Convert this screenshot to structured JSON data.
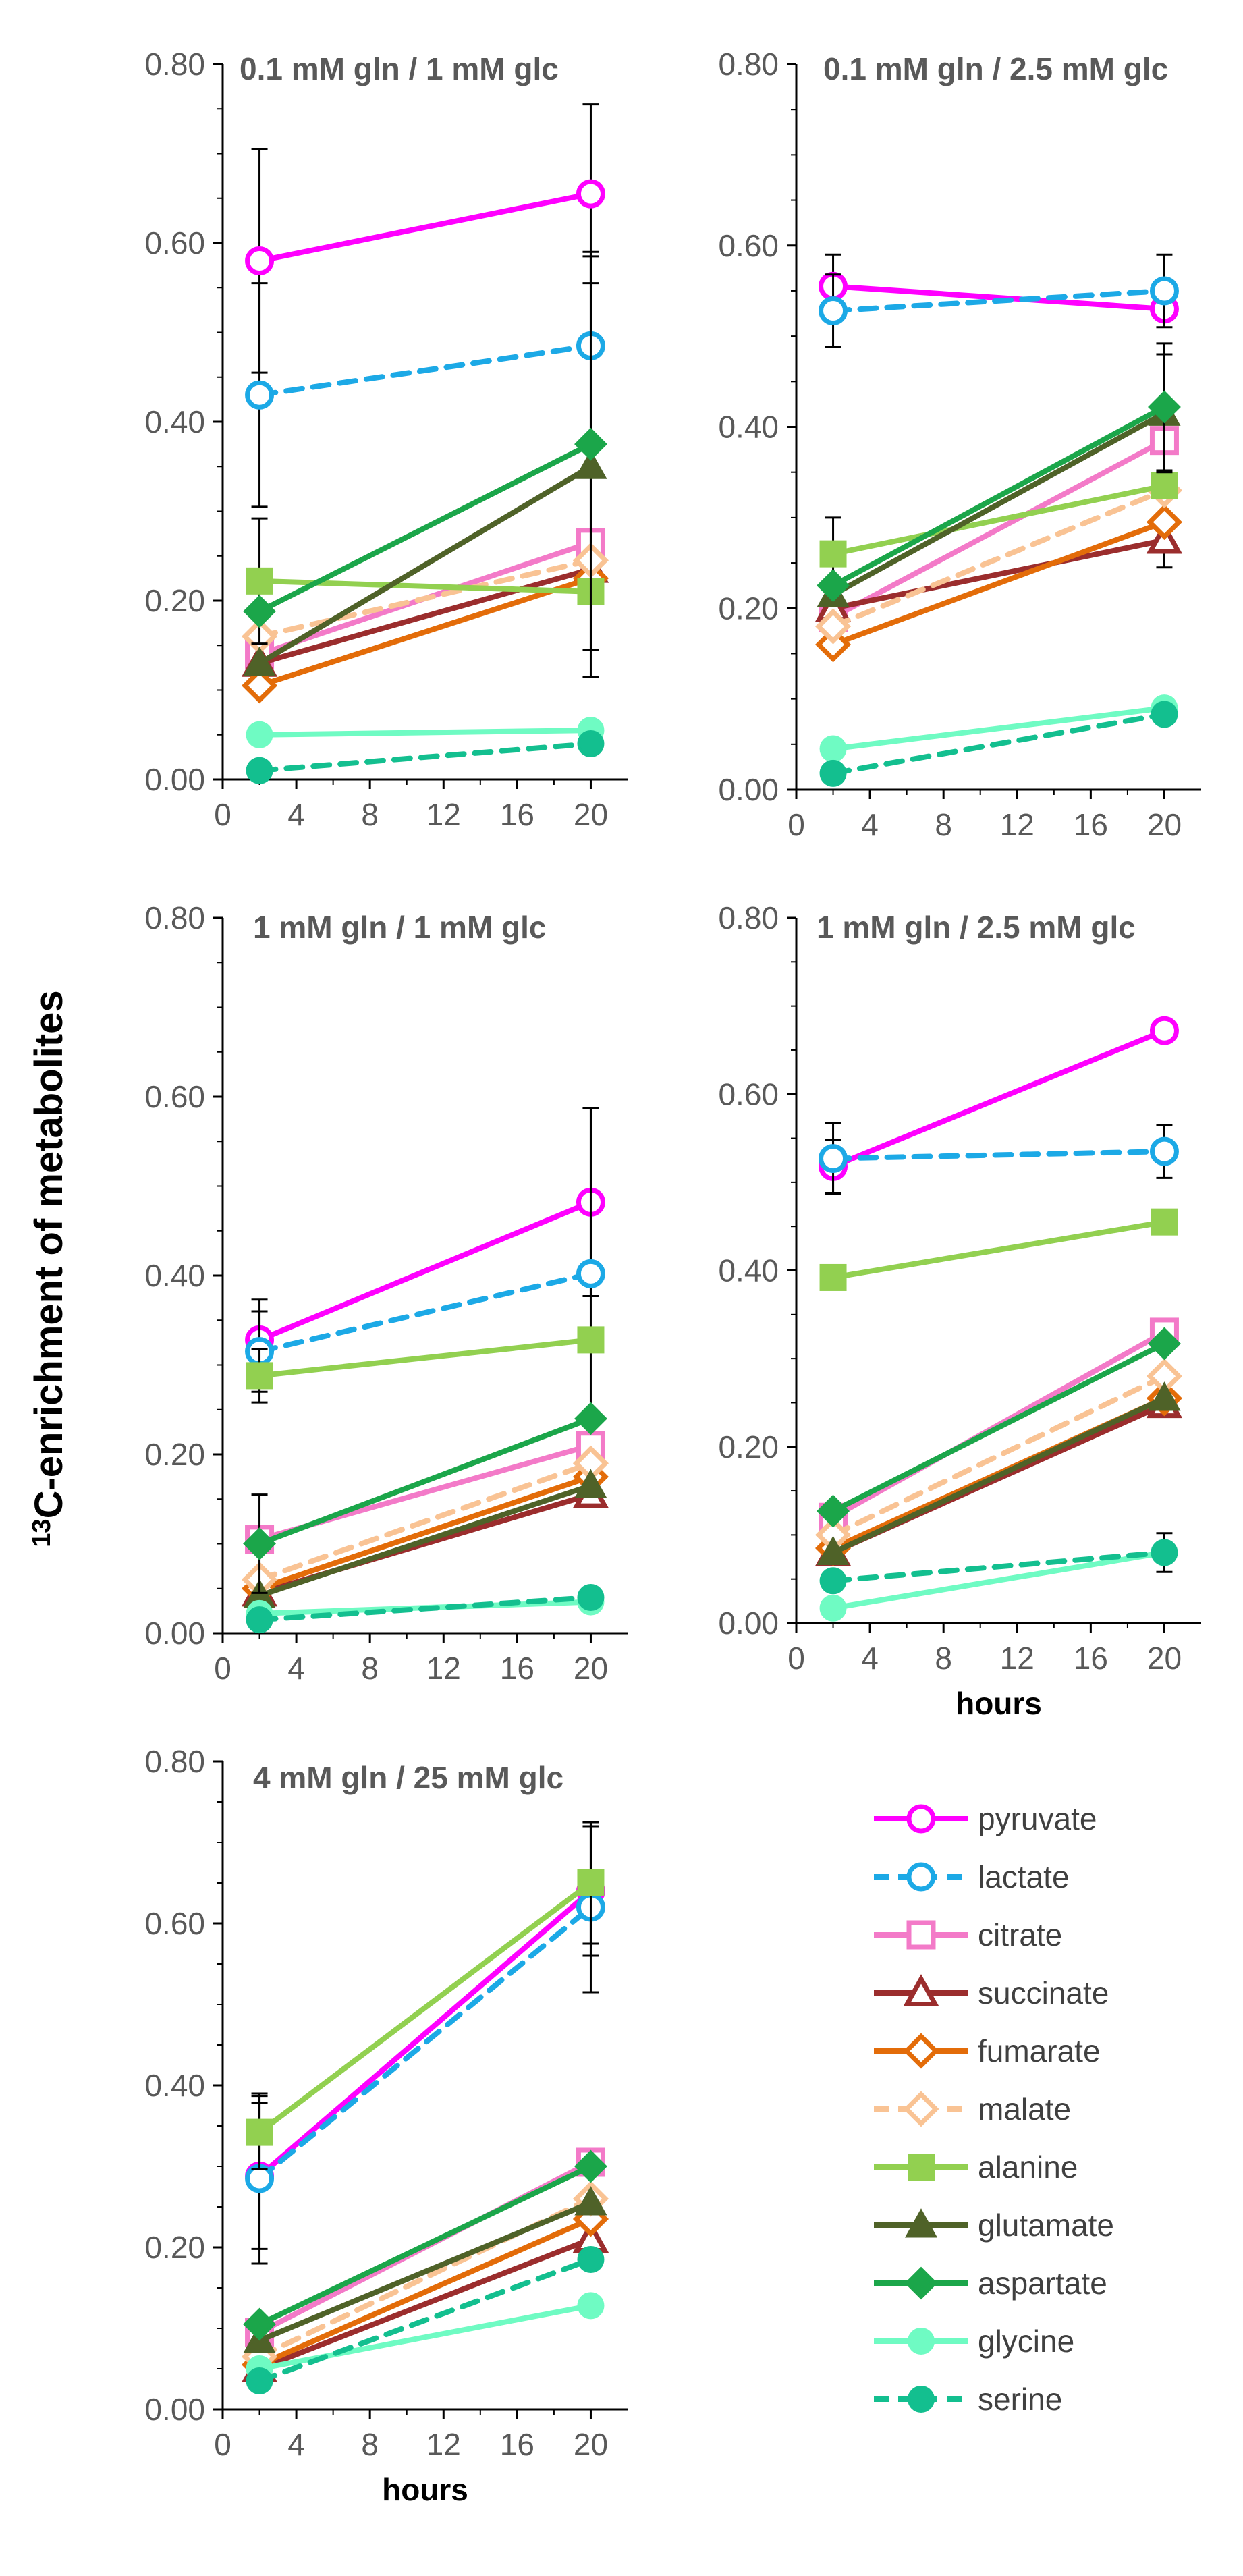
{
  "chart_data": {
    "type": "line",
    "ylabel_prefix": "13",
    "ylabel": "C-enrichment of metabolites",
    "x_ticks": [
      "0",
      "4",
      "8",
      "12",
      "16",
      "20"
    ],
    "y_ticks": [
      "0.00",
      "0.20",
      "0.40",
      "0.60",
      "0.80"
    ],
    "xlim": [
      0,
      22
    ],
    "ylim": [
      0,
      0.8
    ],
    "legend": {
      "placement": "bottom-right",
      "entries": [
        "pyruvate",
        "lactate",
        "citrate",
        "succinate",
        "fumarate",
        "malate",
        "alanine",
        "glutamate",
        "aspartate",
        "glycine",
        "serine"
      ]
    },
    "series_styles": [
      {
        "name": "pyruvate",
        "color": "#FF00FF",
        "marker": "circle-open",
        "dash": "solid"
      },
      {
        "name": "lactate",
        "color": "#1CA9E6",
        "marker": "circle-open",
        "dash": "dashed"
      },
      {
        "name": "citrate",
        "color": "#F37AC8",
        "marker": "square-open",
        "dash": "solid"
      },
      {
        "name": "succinate",
        "color": "#9B2D2D",
        "marker": "triangle-open",
        "dash": "solid"
      },
      {
        "name": "fumarate",
        "color": "#E36C09",
        "marker": "diamond-open",
        "dash": "solid"
      },
      {
        "name": "malate",
        "color": "#F9C394",
        "marker": "diamond-open",
        "dash": "dashed"
      },
      {
        "name": "alanine",
        "color": "#92D050",
        "marker": "square",
        "dash": "solid"
      },
      {
        "name": "glutamate",
        "color": "#4F6228",
        "marker": "triangle",
        "dash": "solid"
      },
      {
        "name": "aspartate",
        "color": "#1BA64A",
        "marker": "diamond",
        "dash": "solid"
      },
      {
        "name": "glycine",
        "color": "#6FFBC3",
        "marker": "circle",
        "dash": "solid"
      },
      {
        "name": "serine",
        "color": "#13BF8F",
        "marker": "circle",
        "dash": "dashed"
      }
    ],
    "panels": [
      {
        "title": "0.1 mM gln / 1 mM glc",
        "xlabel": "",
        "x": [
          2,
          20
        ],
        "series": [
          {
            "name": "pyruvate",
            "values": [
              0.58,
              0.655
            ],
            "err": [
              0.125,
              0.1
            ]
          },
          {
            "name": "lactate",
            "values": [
              0.43,
              0.485
            ],
            "err": [
              0.125,
              0.105
            ]
          },
          {
            "name": "citrate",
            "values": [
              0.14,
              0.265
            ],
            "err": [
              0,
              0
            ]
          },
          {
            "name": "succinate",
            "values": [
              0.13,
              0.235
            ],
            "err": [
              0,
              0
            ]
          },
          {
            "name": "fumarate",
            "values": [
              0.105,
              0.225
            ],
            "err": [
              0,
              0
            ]
          },
          {
            "name": "malate",
            "values": [
              0.16,
              0.245
            ],
            "err": [
              0,
              0.1
            ]
          },
          {
            "name": "alanine",
            "values": [
              0.222,
              0.21
            ],
            "err": [
              0.07,
              0
            ]
          },
          {
            "name": "glutamate",
            "values": [
              0.13,
              0.35
            ],
            "err": [
              0,
              0.235
            ]
          },
          {
            "name": "aspartate",
            "values": [
              0.188,
              0.375
            ],
            "err": [
              0,
              0
            ]
          },
          {
            "name": "glycine",
            "values": [
              0.05,
              0.055
            ],
            "err": [
              0,
              0
            ]
          },
          {
            "name": "serine",
            "values": [
              0.01,
              0.04
            ],
            "err": [
              0,
              0
            ]
          }
        ]
      },
      {
        "title": "0.1 mM gln / 2.5 mM glc",
        "xlabel": "",
        "x": [
          2,
          20
        ],
        "series": [
          {
            "name": "pyruvate",
            "values": [
              0.555,
              0.53
            ],
            "err": [
              0.035,
              0
            ]
          },
          {
            "name": "lactate",
            "values": [
              0.528,
              0.55
            ],
            "err": [
              0.04,
              0.04
            ]
          },
          {
            "name": "citrate",
            "values": [
              0.19,
              0.385
            ],
            "err": [
              0,
              0
            ]
          },
          {
            "name": "succinate",
            "values": [
              0.2,
              0.275
            ],
            "err": [
              0,
              0.03
            ]
          },
          {
            "name": "fumarate",
            "values": [
              0.16,
              0.295
            ],
            "err": [
              0,
              0
            ]
          },
          {
            "name": "malate",
            "values": [
              0.18,
              0.33
            ],
            "err": [
              0,
              0
            ]
          },
          {
            "name": "alanine",
            "values": [
              0.26,
              0.335
            ],
            "err": [
              0.04,
              0
            ]
          },
          {
            "name": "glutamate",
            "values": [
              0.215,
              0.415
            ],
            "err": [
              0,
              0.065
            ]
          },
          {
            "name": "aspartate",
            "values": [
              0.225,
              0.422
            ],
            "err": [
              0,
              0.07
            ]
          },
          {
            "name": "glycine",
            "values": [
              0.045,
              0.09
            ],
            "err": [
              0,
              0
            ]
          },
          {
            "name": "serine",
            "values": [
              0.018,
              0.083
            ],
            "err": [
              0,
              0
            ]
          }
        ]
      },
      {
        "title": "1 mM gln / 1 mM glc",
        "xlabel": "",
        "x": [
          2,
          20
        ],
        "series": [
          {
            "name": "pyruvate",
            "values": [
              0.328,
              0.482
            ],
            "err": [
              0.045,
              0.105
            ]
          },
          {
            "name": "lactate",
            "values": [
              0.315,
              0.402
            ],
            "err": [
              0.045,
              0.185
            ]
          },
          {
            "name": "citrate",
            "values": [
              0.105,
              0.21
            ],
            "err": [
              0,
              0
            ]
          },
          {
            "name": "succinate",
            "values": [
              0.045,
              0.155
            ],
            "err": [
              0,
              0
            ]
          },
          {
            "name": "fumarate",
            "values": [
              0.05,
              0.175
            ],
            "err": [
              0,
              0
            ]
          },
          {
            "name": "malate",
            "values": [
              0.06,
              0.19
            ],
            "err": [
              0,
              0
            ]
          },
          {
            "name": "alanine",
            "values": [
              0.288,
              0.328
            ],
            "err": [
              0.03,
              0
            ]
          },
          {
            "name": "glutamate",
            "values": [
              0.042,
              0.165
            ],
            "err": [
              0,
              0
            ]
          },
          {
            "name": "aspartate",
            "values": [
              0.1,
              0.24
            ],
            "err": [
              0.055,
              0
            ]
          },
          {
            "name": "glycine",
            "values": [
              0.022,
              0.035
            ],
            "err": [
              0,
              0
            ]
          },
          {
            "name": "serine",
            "values": [
              0.015,
              0.04
            ],
            "err": [
              0,
              0
            ]
          }
        ]
      },
      {
        "title": "1 mM gln / 2.5 mM glc",
        "xlabel": "hours",
        "x": [
          2,
          20
        ],
        "series": [
          {
            "name": "pyruvate",
            "values": [
              0.518,
              0.672
            ],
            "err": [
              0.03,
              0
            ]
          },
          {
            "name": "lactate",
            "values": [
              0.527,
              0.535
            ],
            "err": [
              0.04,
              0.03
            ]
          },
          {
            "name": "citrate",
            "values": [
              0.12,
              0.33
            ],
            "err": [
              0,
              0
            ]
          },
          {
            "name": "succinate",
            "values": [
              0.08,
              0.248
            ],
            "err": [
              0,
              0
            ]
          },
          {
            "name": "fumarate",
            "values": [
              0.085,
              0.255
            ],
            "err": [
              0,
              0
            ]
          },
          {
            "name": "malate",
            "values": [
              0.1,
              0.28
            ],
            "err": [
              0,
              0
            ]
          },
          {
            "name": "alanine",
            "values": [
              0.392,
              0.455
            ],
            "err": [
              0,
              0
            ]
          },
          {
            "name": "glutamate",
            "values": [
              0.08,
              0.255
            ],
            "err": [
              0,
              0
            ]
          },
          {
            "name": "aspartate",
            "values": [
              0.127,
              0.317
            ],
            "err": [
              0,
              0
            ]
          },
          {
            "name": "glycine",
            "values": [
              0.017,
              0.08
            ],
            "err": [
              0,
              0
            ]
          },
          {
            "name": "serine",
            "values": [
              0.048,
              0.08
            ],
            "err": [
              0,
              0.022
            ]
          }
        ]
      },
      {
        "title": "4 mM gln / 25 mM glc",
        "xlabel": "hours",
        "x": [
          2,
          20
        ],
        "series": [
          {
            "name": "pyruvate",
            "values": [
              0.288,
              0.64
            ],
            "err": [
              0.09,
              0.08
            ]
          },
          {
            "name": "lactate",
            "values": [
              0.285,
              0.62
            ],
            "err": [
              0.105,
              0.105
            ]
          },
          {
            "name": "citrate",
            "values": [
              0.095,
              0.305
            ],
            "err": [
              0,
              0
            ]
          },
          {
            "name": "succinate",
            "values": [
              0.05,
              0.21
            ],
            "err": [
              0,
              0
            ]
          },
          {
            "name": "fumarate",
            "values": [
              0.055,
              0.235
            ],
            "err": [
              0,
              0
            ]
          },
          {
            "name": "malate",
            "values": [
              0.065,
              0.26
            ],
            "err": [
              0,
              0
            ]
          },
          {
            "name": "alanine",
            "values": [
              0.342,
              0.65
            ],
            "err": [
              0.045,
              0.075
            ]
          },
          {
            "name": "glutamate",
            "values": [
              0.085,
              0.255
            ],
            "err": [
              0,
              0
            ]
          },
          {
            "name": "aspartate",
            "values": [
              0.105,
              0.3
            ],
            "err": [
              0,
              0
            ]
          },
          {
            "name": "glycine",
            "values": [
              0.05,
              0.128
            ],
            "err": [
              0,
              0
            ]
          },
          {
            "name": "serine",
            "values": [
              0.035,
              0.185
            ],
            "err": [
              0,
              0
            ]
          }
        ]
      }
    ]
  }
}
